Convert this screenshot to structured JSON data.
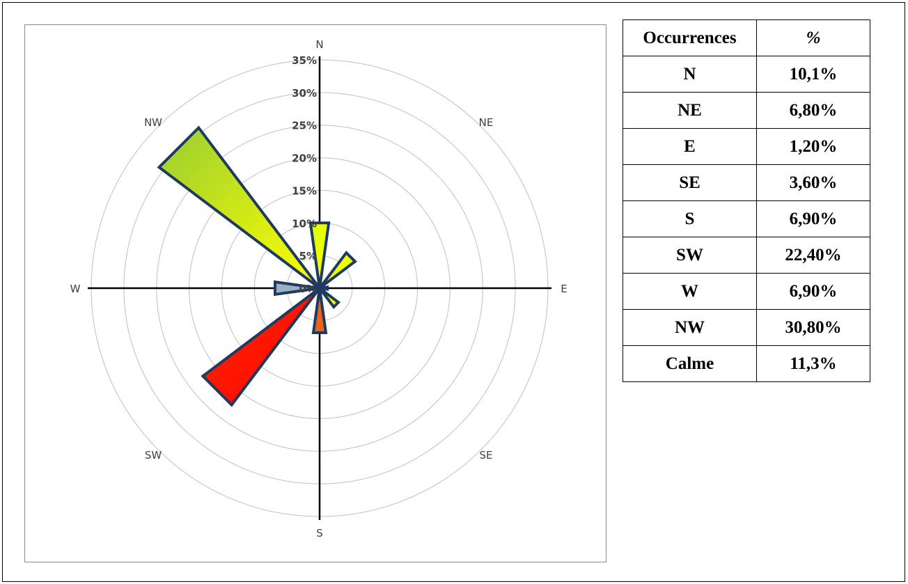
{
  "chart_data": {
    "type": "radar",
    "subtype": "filled wind rose",
    "directions": [
      "N",
      "NE",
      "E",
      "SE",
      "S",
      "SW",
      "W",
      "NW"
    ],
    "values_pct": [
      10.1,
      6.8,
      1.2,
      3.6,
      6.9,
      22.4,
      6.9,
      30.8
    ],
    "radial_ticks": [
      "0%",
      "5%",
      "10%",
      "15%",
      "20%",
      "25%",
      "30%",
      "35%"
    ],
    "rlim": [
      0,
      35
    ],
    "grid": true,
    "legend": "none",
    "colors": {
      "outline": "#1f3a5f",
      "low": "#ffff00",
      "mid": "#9acd32",
      "high": "#ff0000",
      "grid": "#bfbfbf",
      "axis": "#000000"
    }
  },
  "table": {
    "headers": [
      "Occurrences",
      "%"
    ],
    "rows": [
      {
        "label": "N",
        "value": "10,1%"
      },
      {
        "label": "NE",
        "value": "6,80%"
      },
      {
        "label": "E",
        "value": "1,20%"
      },
      {
        "label": "SE",
        "value": "3,60%"
      },
      {
        "label": "S",
        "value": "6,90%"
      },
      {
        "label": "SW",
        "value": "22,40%"
      },
      {
        "label": "W",
        "value": "6,90%"
      },
      {
        "label": "NW",
        "value": "30,80%"
      },
      {
        "label": "Calme",
        "value": "11,3%"
      }
    ]
  }
}
